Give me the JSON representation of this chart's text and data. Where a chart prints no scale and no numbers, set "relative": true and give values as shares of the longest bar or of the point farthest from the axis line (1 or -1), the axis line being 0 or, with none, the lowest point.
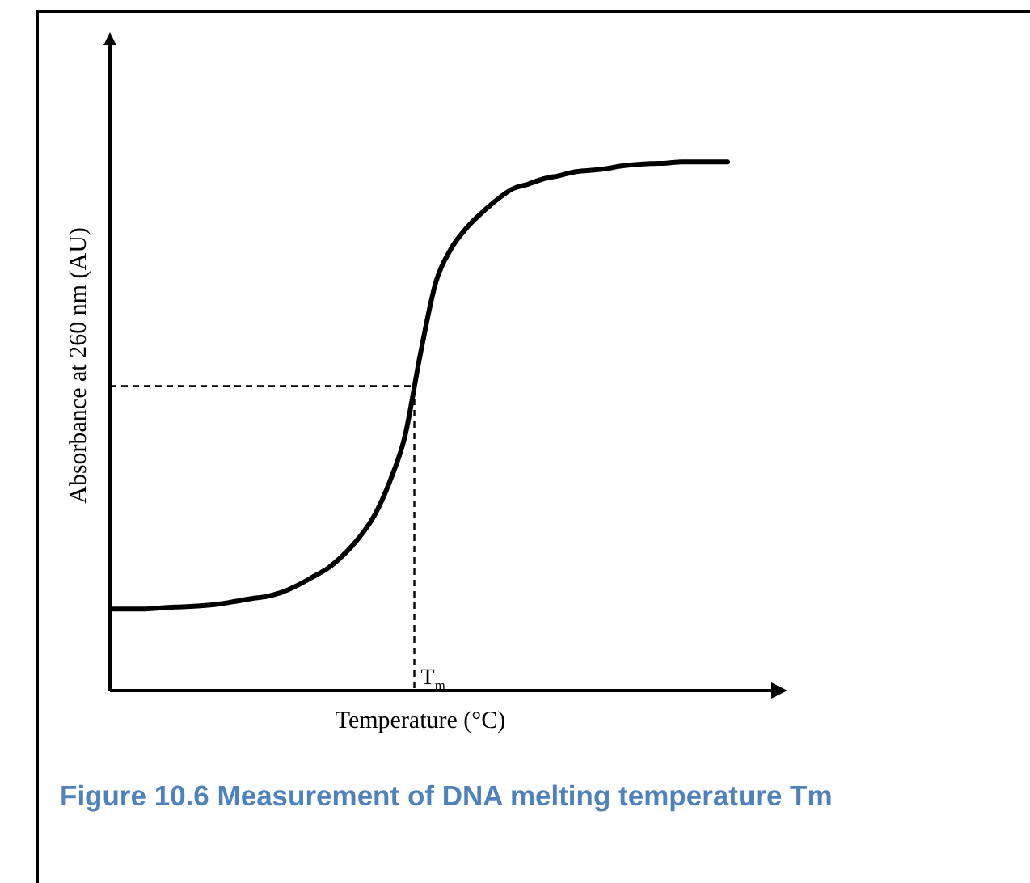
{
  "chart_data": {
    "type": "line",
    "title": "Figure 10.6 Measurement of DNA melting temperature Tm",
    "xlabel": "Temperature (°C)",
    "ylabel": "Absorbance at 260 nm (AU)",
    "relative": true,
    "categories": [
      null,
      null,
      null,
      null,
      null,
      null,
      null,
      null,
      null,
      null,
      null,
      null,
      null,
      null,
      null,
      null,
      null,
      null,
      null,
      null,
      null,
      null,
      null,
      null,
      null,
      null,
      null,
      null,
      null,
      null,
      null,
      null,
      null,
      null,
      null,
      null,
      null,
      null,
      null,
      null,
      null
    ],
    "series": [
      {
        "color": "#000000",
        "values": [
          0.154,
          0.154,
          0.154,
          0.156,
          0.158,
          0.159,
          0.161,
          0.164,
          0.169,
          0.174,
          0.178,
          0.186,
          0.199,
          0.215,
          0.232,
          0.257,
          0.289,
          0.331,
          0.395,
          0.482,
          0.637,
          0.772,
          0.836,
          0.875,
          0.904,
          0.929,
          0.949,
          0.958,
          0.968,
          0.974,
          0.981,
          0.984,
          0.987,
          0.992,
          0.995,
          0.997,
          0.998,
          1,
          1,
          1,
          1
        ]
      }
    ],
    "ref_lines": [
      {
        "axis": "y",
        "value": 0.576,
        "label": "T$_{m}$",
        "line_style": "dashed"
      }
    ],
    "grid": false,
    "legend": false,
    "tick_labels": false,
    "marker": "none",
    "line_style": "solid"
  }
}
